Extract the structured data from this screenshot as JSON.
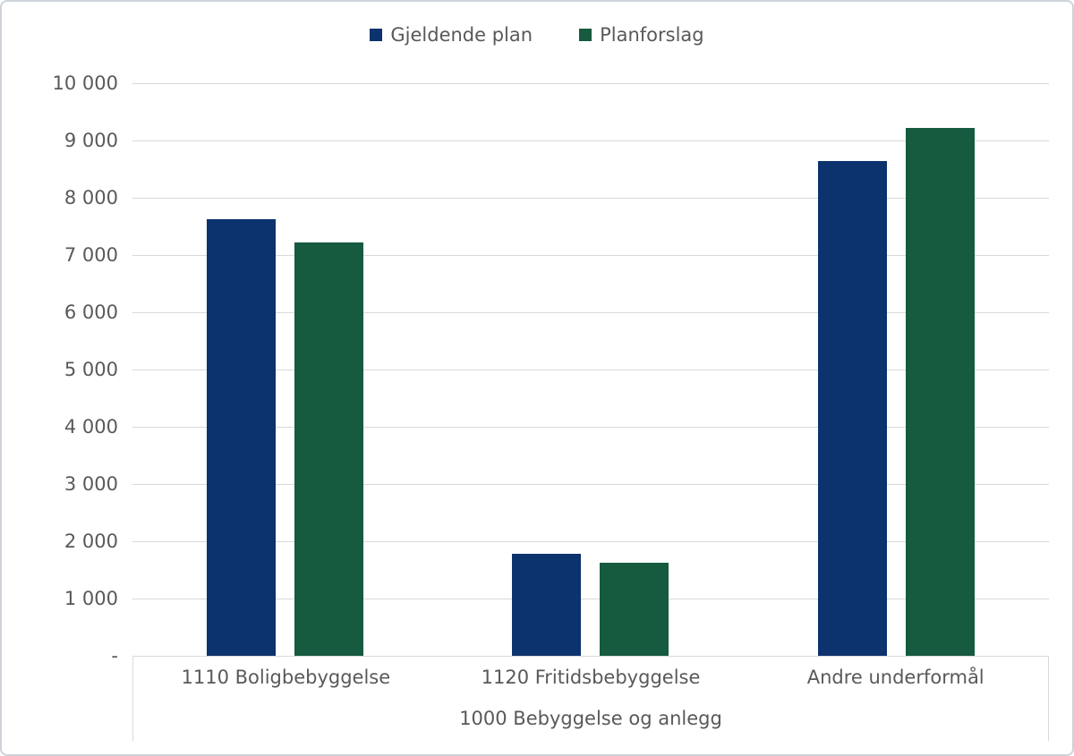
{
  "chart_data": {
    "type": "bar",
    "title": "",
    "categories": [
      "1110 Boligbebyggelse",
      "1120 Fritidsbebyggelse",
      "Andre underformål"
    ],
    "series": [
      {
        "name": "Gjeldende plan",
        "color": "#0d336e",
        "values": [
          7620,
          1780,
          8640
        ]
      },
      {
        "name": "Planforslag",
        "color": "#165a40",
        "values": [
          7220,
          1620,
          9220
        ]
      }
    ],
    "xlabel": "1000 Bebyggelse og anlegg",
    "ylabel": "",
    "ylim": [
      0,
      10000
    ],
    "y_ticks": [
      {
        "value": 10000,
        "label": "10 000"
      },
      {
        "value": 9000,
        "label": "9 000"
      },
      {
        "value": 8000,
        "label": "8 000"
      },
      {
        "value": 7000,
        "label": "7 000"
      },
      {
        "value": 6000,
        "label": "6 000"
      },
      {
        "value": 5000,
        "label": "5 000"
      },
      {
        "value": 4000,
        "label": "4 000"
      },
      {
        "value": 3000,
        "label": "3 000"
      },
      {
        "value": 2000,
        "label": "2 000"
      },
      {
        "value": 1000,
        "label": "1 000"
      },
      {
        "value": 0,
        "label": "-"
      }
    ],
    "grid": true,
    "legend_position": "top"
  },
  "colors": {
    "text": "#595959",
    "gridline": "#d9d9d9",
    "frame_border": "#cdd3d9",
    "background": "#ffffff",
    "series_blue": "#0d336e",
    "series_green": "#165a40"
  }
}
